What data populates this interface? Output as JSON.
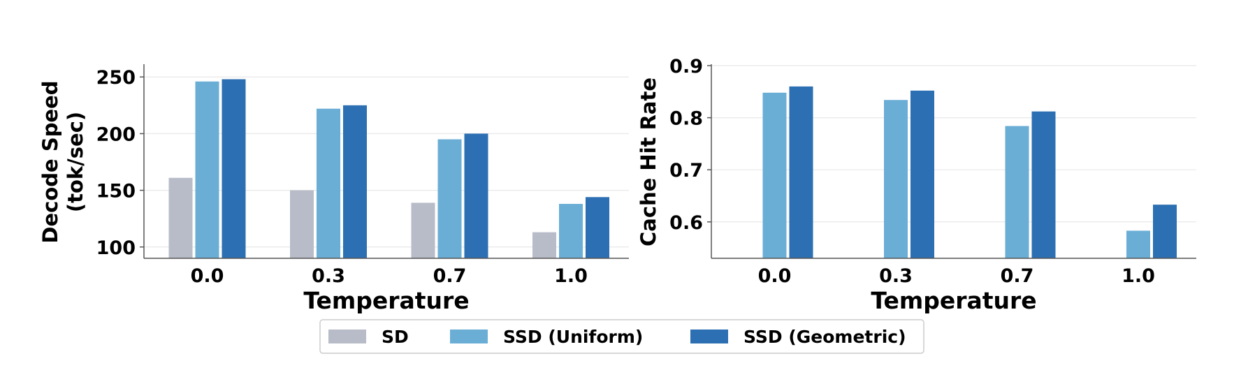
{
  "chart_data": [
    {
      "type": "bar",
      "title": "",
      "xlabel": "Temperature",
      "ylabel": [
        "Decode Speed",
        "(tok/sec)"
      ],
      "categories": [
        "0.0",
        "0.3",
        "0.7",
        "1.0"
      ],
      "yticks": [
        "100",
        "150",
        "200",
        "250"
      ],
      "ytick_values": [
        100,
        150,
        200,
        250
      ],
      "ylim": [
        90,
        260
      ],
      "series": [
        {
          "name": "SD",
          "color": "#b8bcc8",
          "values": [
            161,
            150,
            139,
            113
          ]
        },
        {
          "name": "SSD (Uniform)",
          "color": "#6aaed6",
          "values": [
            246,
            222,
            195,
            138
          ]
        },
        {
          "name": "SSD (Geometric)",
          "color": "#2c6fb2",
          "values": [
            248,
            225,
            200,
            144
          ]
        }
      ],
      "grid": true
    },
    {
      "type": "bar",
      "title": "",
      "xlabel": "Temperature",
      "ylabel": [
        "Cache Hit Rate"
      ],
      "categories": [
        "0.0",
        "0.3",
        "0.7",
        "1.0"
      ],
      "yticks": [
        "0.6",
        "0.7",
        "0.8",
        "0.9"
      ],
      "ytick_values": [
        0.6,
        0.7,
        0.8,
        0.9
      ],
      "ylim": [
        0.53,
        0.9
      ],
      "series": [
        {
          "name": "SSD (Uniform)",
          "color": "#6aaed6",
          "values": [
            0.848,
            0.834,
            0.784,
            0.583
          ]
        },
        {
          "name": "SSD (Geometric)",
          "color": "#2c6fb2",
          "values": [
            0.86,
            0.852,
            0.812,
            0.633
          ]
        }
      ],
      "grid": true
    }
  ],
  "legend": {
    "placement": "bottom-center",
    "entries": [
      {
        "label": "SD",
        "color": "#b8bcc8"
      },
      {
        "label": "SSD (Uniform)",
        "color": "#6aaed6"
      },
      {
        "label": "SSD (Geometric)",
        "color": "#2c6fb2"
      }
    ]
  }
}
